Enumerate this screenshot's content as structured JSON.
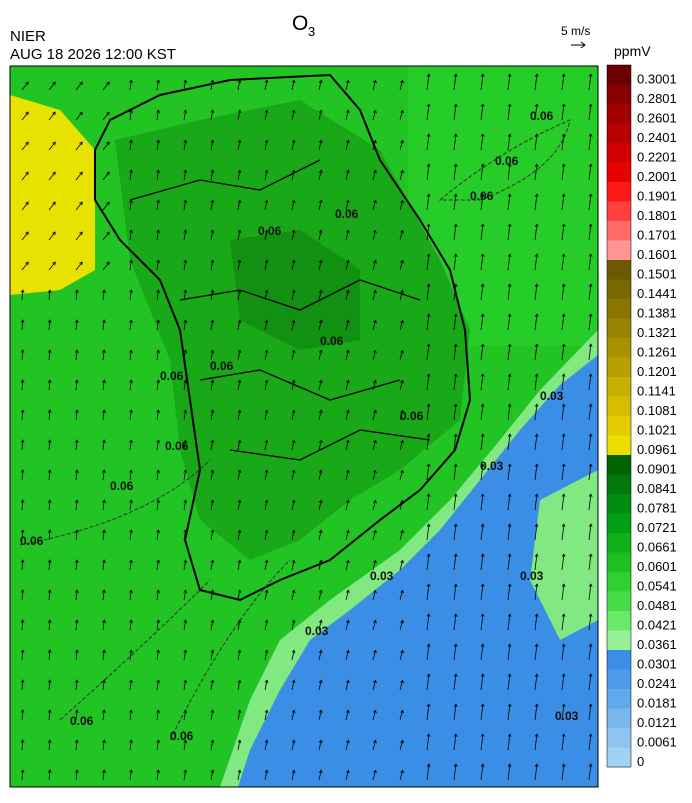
{
  "header": {
    "title": "O",
    "title_subscript": "3",
    "agency": "NIER",
    "datetime": "AUG 18 2026 12:00 KST",
    "wind_scale": "5 m/s"
  },
  "colorbar": {
    "unit": "ppmV",
    "levels": [
      {
        "label": "0.3001",
        "color": "#6b0000"
      },
      {
        "label": "0.2801",
        "color": "#870000"
      },
      {
        "label": "0.2601",
        "color": "#a00000"
      },
      {
        "label": "0.2401",
        "color": "#b80000"
      },
      {
        "label": "0.2201",
        "color": "#d00000"
      },
      {
        "label": "0.2001",
        "color": "#e80000"
      },
      {
        "label": "0.1901",
        "color": "#ff1a1a"
      },
      {
        "label": "0.1801",
        "color": "#ff4040"
      },
      {
        "label": "0.1701",
        "color": "#ff6a6a"
      },
      {
        "label": "0.1601",
        "color": "#ff9696"
      },
      {
        "label": "0.1501",
        "color": "#6b5a00"
      },
      {
        "label": "0.1441",
        "color": "#7a6800"
      },
      {
        "label": "0.1381",
        "color": "#897500"
      },
      {
        "label": "0.1321",
        "color": "#988300"
      },
      {
        "label": "0.1261",
        "color": "#a89200"
      },
      {
        "label": "0.1201",
        "color": "#b8a000"
      },
      {
        "label": "0.1141",
        "color": "#c8af00"
      },
      {
        "label": "0.1081",
        "color": "#d6bd00"
      },
      {
        "label": "0.1021",
        "color": "#e2cc00"
      },
      {
        "label": "0.0961",
        "color": "#eede00"
      },
      {
        "label": "0.0901",
        "color": "#006400"
      },
      {
        "label": "0.0841",
        "color": "#00780a"
      },
      {
        "label": "0.0781",
        "color": "#008c10"
      },
      {
        "label": "0.0721",
        "color": "#00a014"
      },
      {
        "label": "0.0661",
        "color": "#10b01a"
      },
      {
        "label": "0.0601",
        "color": "#1ec020"
      },
      {
        "label": "0.0541",
        "color": "#30d030"
      },
      {
        "label": "0.0481",
        "color": "#48dc48"
      },
      {
        "label": "0.0421",
        "color": "#6ae86a"
      },
      {
        "label": "0.0361",
        "color": "#96f096"
      },
      {
        "label": "0.0301",
        "color": "#3a8ee6"
      },
      {
        "label": "0.0241",
        "color": "#4e9ae8"
      },
      {
        "label": "0.0181",
        "color": "#62a8ec"
      },
      {
        "label": "0.0121",
        "color": "#78b6ee"
      },
      {
        "label": "0.0061",
        "color": "#8ec4f0"
      },
      {
        "label": "0",
        "color": "#a2d2f2"
      }
    ]
  },
  "contour_labels": [
    "0.06",
    "0.06",
    "0.06",
    "0.06",
    "0.06",
    "0.06",
    "0.06",
    "0.06",
    "0.06",
    "0.06",
    "0.06",
    "0.06",
    "0.06",
    "0.06",
    "0.03",
    "0.03",
    "0.03",
    "0.03",
    "0.03",
    "0.03"
  ]
}
